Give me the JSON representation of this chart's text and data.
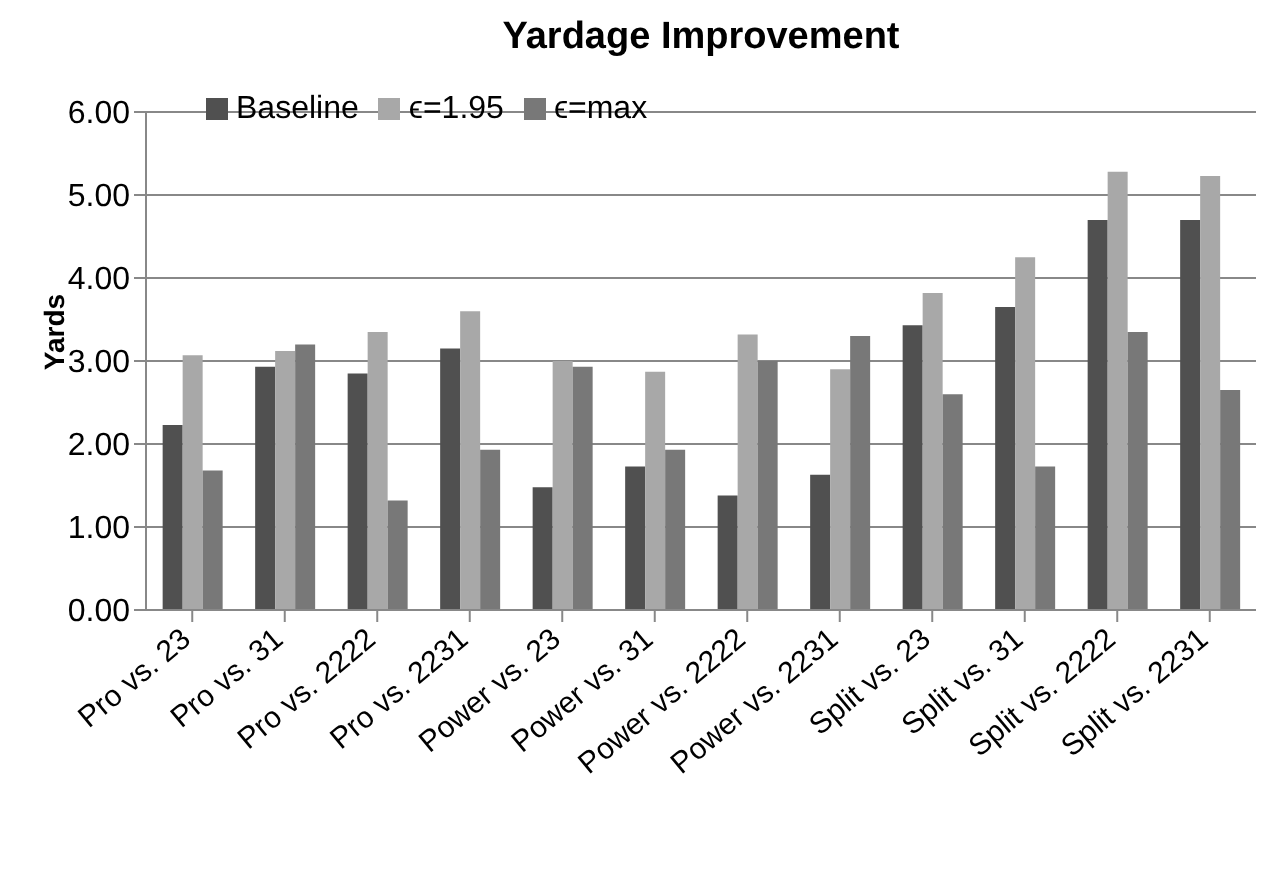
{
  "chart_data": {
    "type": "bar",
    "title": "Yardage Improvement",
    "ylabel": "Yards",
    "categories": [
      "Pro vs. 23",
      "Pro vs. 31",
      "Pro vs. 2222",
      "Pro vs. 2231",
      "Power vs. 23",
      "Power vs. 31",
      "Power vs. 2222",
      "Power vs. 2231",
      "Split vs. 23",
      "Split vs. 31",
      "Split vs. 2222",
      "Split vs. 2231"
    ],
    "series": [
      {
        "name": "Baseline",
        "color": "#505050",
        "values": [
          2.23,
          2.93,
          2.85,
          3.15,
          1.48,
          1.73,
          1.38,
          1.63,
          3.43,
          3.65,
          4.7,
          4.7
        ]
      },
      {
        "name": "ϵ=1.95",
        "color": "#a8a8a8",
        "values": [
          3.07,
          3.12,
          3.35,
          3.6,
          3.0,
          2.87,
          3.32,
          2.9,
          3.82,
          4.25,
          5.28,
          5.23
        ]
      },
      {
        "name": "ϵ=max",
        "color": "#787878",
        "values": [
          1.68,
          3.2,
          1.32,
          1.93,
          2.93,
          1.93,
          3.0,
          3.3,
          2.6,
          1.73,
          3.35,
          2.65
        ]
      }
    ],
    "ylim": [
      0,
      6
    ],
    "yticks": [
      {
        "value": 0,
        "label": "0.00"
      },
      {
        "value": 1,
        "label": "1.00"
      },
      {
        "value": 2,
        "label": "2.00"
      },
      {
        "value": 3,
        "label": "3.00"
      },
      {
        "value": 4,
        "label": "4.00"
      },
      {
        "value": 5,
        "label": "5.00"
      },
      {
        "value": 6,
        "label": "6.00"
      }
    ],
    "grid": "y",
    "legend": "top left"
  }
}
